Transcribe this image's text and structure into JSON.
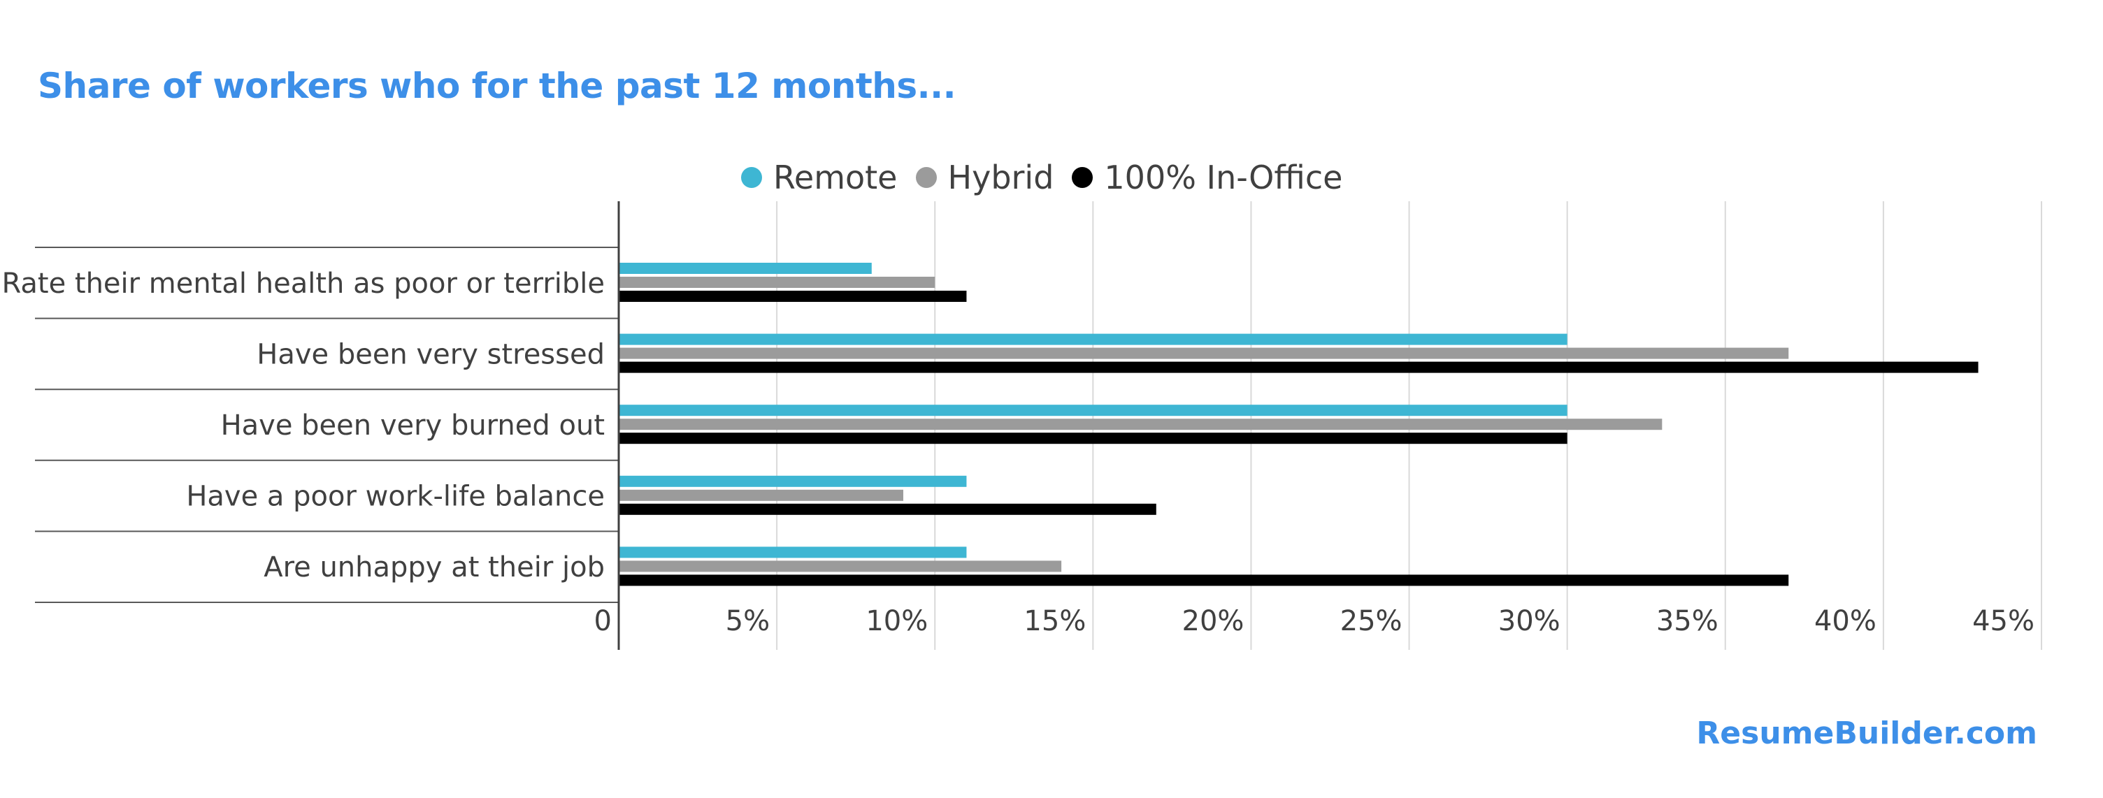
{
  "title": "Share of workers who for the past 12 months...",
  "source": "ResumeBuilder.com",
  "colors": {
    "accent": "#3d8fe8",
    "remote": "#3eb6d3",
    "hybrid": "#9b9b9b",
    "in_office": "#000000",
    "text": "#404040",
    "gridline": "#d9d9d9"
  },
  "legend": [
    {
      "label": "Remote",
      "color": "#3eb6d3"
    },
    {
      "label": "Hybrid",
      "color": "#9b9b9b"
    },
    {
      "label": "100% In-Office",
      "color": "#000000"
    }
  ],
  "chart_data": {
    "type": "bar",
    "orientation": "horizontal",
    "title": "Share of workers who for the past 12 months...",
    "categories": [
      "Rate their mental health as poor or terrible",
      "Have been very stressed",
      "Have been very burned out",
      "Have a poor work-life balance",
      "Are unhappy at their job"
    ],
    "series": [
      {
        "name": "Remote",
        "color": "#3eb6d3",
        "values": [
          8,
          30,
          30,
          11,
          11
        ]
      },
      {
        "name": "Hybrid",
        "color": "#9b9b9b",
        "values": [
          10,
          37,
          33,
          9,
          14
        ]
      },
      {
        "name": "100% In-Office",
        "color": "#000000",
        "values": [
          11,
          43,
          30,
          17,
          37
        ]
      }
    ],
    "xlim": [
      0,
      45
    ],
    "ticks": [
      0,
      5,
      10,
      15,
      20,
      25,
      30,
      35,
      40,
      45
    ],
    "tick_labels": [
      "0",
      "5%",
      "10%",
      "15%",
      "20%",
      "25%",
      "30%",
      "35%",
      "40%",
      "45%"
    ],
    "xlabel": "",
    "ylabel": "",
    "grid": true,
    "legend_position": "top-center"
  }
}
